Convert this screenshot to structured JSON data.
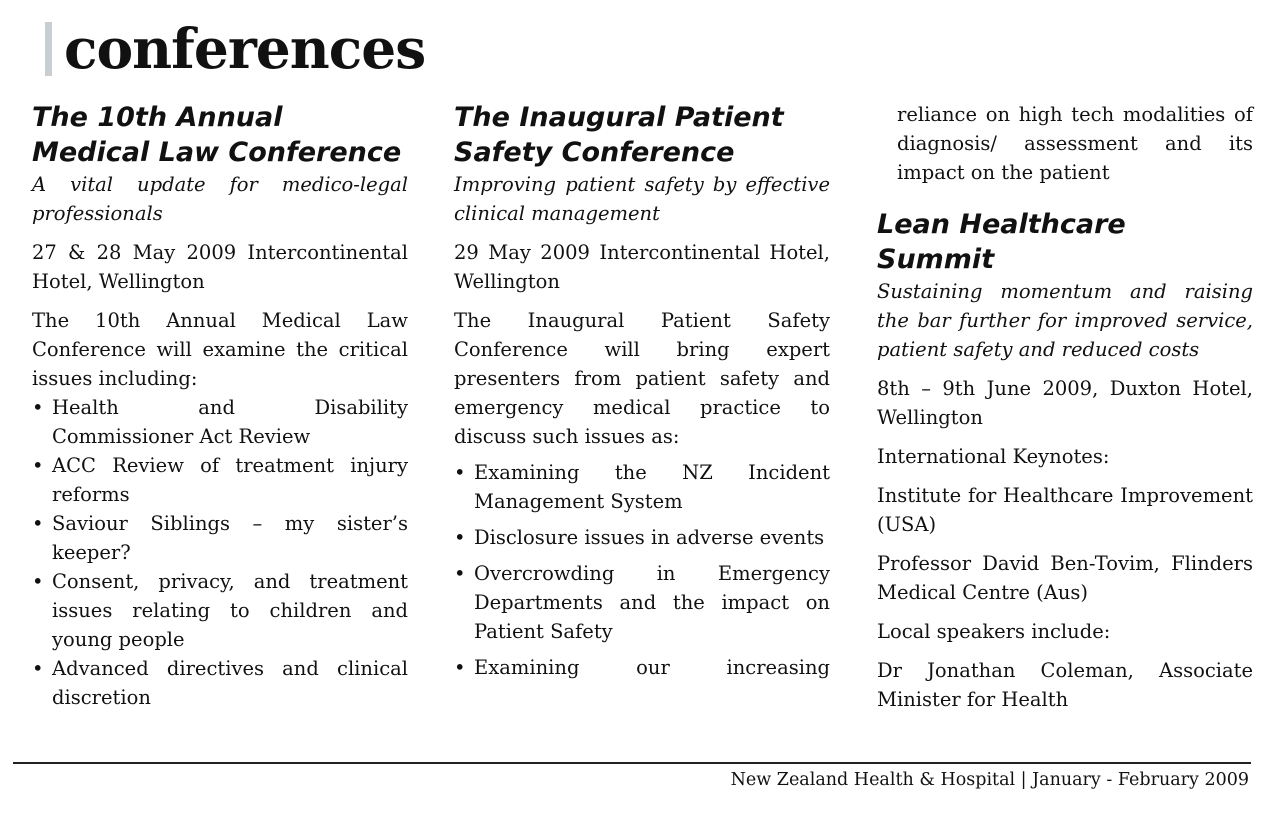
{
  "header": {
    "title": "conferences"
  },
  "col1": {
    "title_line1": "The 10th Annual",
    "title_line2": "Medical Law Conference",
    "subtitle": "A vital update for medico-legal professionals",
    "date_venue": "27 & 28 May 2009  Intercontinental Hotel, Wellington",
    "intro": "The 10th Annual Medical Law Conference will examine the critical issues including:",
    "bullets": [
      "Health and Disability Commissioner Act Review",
      "ACC Review of treatment injury reforms",
      "Saviour Siblings – my sister’s keeper?",
      "Consent, privacy, and treatment issues relating to children and young people",
      " Advanced directives and clinical discretion"
    ]
  },
  "col2": {
    "title_line1": "The Inaugural Patient",
    "title_line2": "Safety Conference",
    "subtitle": "Improving patient safety by effective clinical management",
    "date_venue": "29 May 2009  Intercontinental Hotel, Wellington",
    "intro": "The Inaugural Patient Safety Conference will bring expert presenters from patient safety and emergency medical practice to discuss such issues as:",
    "bullets": [
      "Examining the NZ Incident Management System",
      "Disclosure issues in adverse events",
      "Overcrowding in Emergency Departments and the impact on Patient Safety",
      "Examining our increasing"
    ]
  },
  "col3": {
    "continuation": "reliance on high tech modalities of diagnosis/ assessment and its impact on the patient",
    "title_line1": "Lean Healthcare",
    "title_line2": "Summit",
    "subtitle": "Sustaining momentum and raising the bar further for improved service, patient safety and reduced costs",
    "date_venue": "8th – 9th June 2009, Duxton Hotel, Wellington",
    "keynotes_label": "International Keynotes:",
    "keynote1": "Institute for Healthcare Improvement (USA)",
    "keynote2": "Professor David Ben-Tovim, Flinders Medical Centre (Aus)",
    "local_label": "Local speakers include:",
    "local1": "Dr Jonathan Coleman, Associate Minister for Health"
  },
  "footer": {
    "text": "New Zealand Health & Hospital | January - February 2009"
  }
}
